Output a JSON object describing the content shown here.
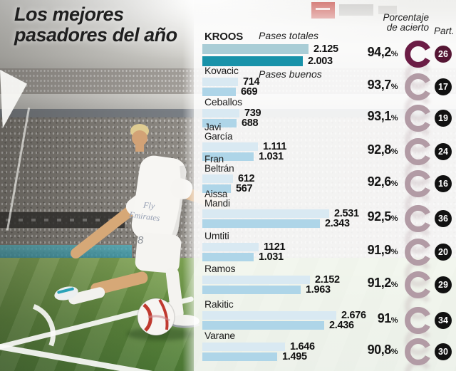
{
  "title": {
    "line1": "Los mejores",
    "line2": "pasadores del año"
  },
  "header": {
    "pases_totales": "Pases totales",
    "pases_buenos": "Pases buenos",
    "accuracy_line1": "Porcentaje",
    "accuracy_line2": "de acierto",
    "part": "Part."
  },
  "photo": {
    "jersey_sponsor_line1": "Fly",
    "jersey_sponsor_line2": "Emirates",
    "shorts_number": "8"
  },
  "colors": {
    "highlight_total_bar": "#a9cdd6",
    "highlight_good_bar": "#1892a9",
    "total_bar": "#d9e9f2",
    "good_bar": "#aed5e8",
    "highlight_ring": "#6b1c45",
    "ring": "#b29ba5",
    "highlight_badge_bg": "#551634",
    "badge_bg": "#111111"
  },
  "chart_data": {
    "type": "bar",
    "title": "Los mejores pasadores del año",
    "series_labels": [
      "Pases totales",
      "Pases buenos"
    ],
    "extra_columns": [
      "Porcentaje de acierto",
      "Part."
    ],
    "max_value": 2676,
    "players": [
      {
        "name_lines": [
          "KROOS"
        ],
        "total": 2125,
        "total_label": "2.125",
        "good": 2003,
        "good_label": "2.003",
        "pct": 94.2,
        "pct_label": "94,2",
        "part": "26",
        "highlight": true
      },
      {
        "name_lines": [
          "Kovacic"
        ],
        "total": 714,
        "total_label": "714",
        "good": 669,
        "good_label": "669",
        "pct": 93.7,
        "pct_label": "93,7",
        "part": "17",
        "highlight": false
      },
      {
        "name_lines": [
          "Ceballos"
        ],
        "total": 739,
        "total_label": "739",
        "good": 688,
        "good_label": "688",
        "pct": 93.1,
        "pct_label": "93,1",
        "part": "19",
        "highlight": false
      },
      {
        "name_lines": [
          "Javi",
          "García"
        ],
        "total": 1111,
        "total_label": "1.111",
        "good": 1031,
        "good_label": "1.031",
        "pct": 92.8,
        "pct_label": "92,8",
        "part": "24",
        "highlight": false
      },
      {
        "name_lines": [
          "Fran",
          "Beltrán"
        ],
        "total": 612,
        "total_label": "612",
        "good": 567,
        "good_label": "567",
        "pct": 92.6,
        "pct_label": "92,6",
        "part": "16",
        "highlight": false
      },
      {
        "name_lines": [
          "Aissa",
          "Mandi"
        ],
        "total": 2531,
        "total_label": "2.531",
        "good": 2343,
        "good_label": "2.343",
        "pct": 92.5,
        "pct_label": "92,5",
        "part": "36",
        "highlight": false
      },
      {
        "name_lines": [
          "Umtiti"
        ],
        "total": 1121,
        "total_label": "1121",
        "good": 1031,
        "good_label": "1.031",
        "pct": 91.9,
        "pct_label": "91,9",
        "part": "20",
        "highlight": false
      },
      {
        "name_lines": [
          "Ramos"
        ],
        "total": 2152,
        "total_label": "2.152",
        "good": 1963,
        "good_label": "1.963",
        "pct": 91.2,
        "pct_label": "91,2",
        "part": "29",
        "highlight": false
      },
      {
        "name_lines": [
          "Rakitic"
        ],
        "total": 2676,
        "total_label": "2.676",
        "good": 2436,
        "good_label": "2.436",
        "pct": 91.0,
        "pct_label": "91",
        "part": "34",
        "highlight": false
      },
      {
        "name_lines": [
          "Varane"
        ],
        "total": 1646,
        "total_label": "1.646",
        "good": 1495,
        "good_label": "1.495",
        "pct": 90.8,
        "pct_label": "90,8",
        "part": "30",
        "highlight": false
      }
    ]
  }
}
